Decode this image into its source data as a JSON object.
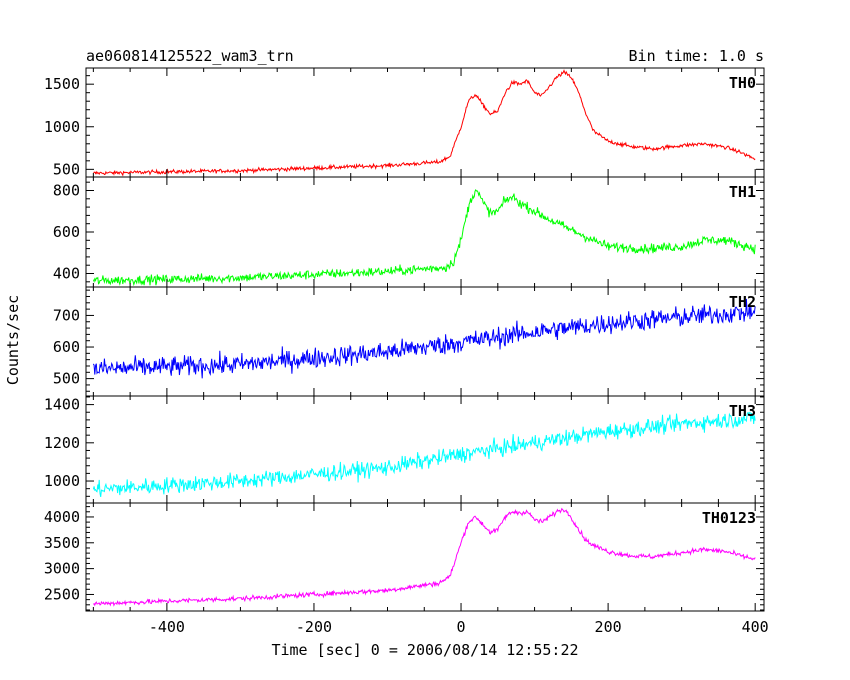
{
  "header": {
    "title": "ae060814125522_wam3_trn",
    "bin_time": "Bin time: 1.0 s"
  },
  "chart_data": {
    "type": "line",
    "xlabel": "Time [sec] 0 = 2006/08/14 12:55:22",
    "ylabel": "Counts/sec",
    "xlim": [
      -510,
      412
    ],
    "xticks": [
      -400,
      -200,
      0,
      200,
      400
    ],
    "x_data_range": [
      -500,
      400
    ],
    "bin_time_s": 1.0,
    "panels": [
      {
        "name": "TH0",
        "color": "#ff0000",
        "noise": 22,
        "ylim": [
          410,
          1690
        ],
        "yticks": [
          500,
          1000,
          1500
        ],
        "profile": [
          [
            -500,
            455
          ],
          [
            -300,
            485
          ],
          [
            -100,
            545
          ],
          [
            -30,
            585
          ],
          [
            -15,
            650
          ],
          [
            0,
            1000
          ],
          [
            10,
            1300
          ],
          [
            20,
            1380
          ],
          [
            30,
            1250
          ],
          [
            40,
            1150
          ],
          [
            50,
            1180
          ],
          [
            60,
            1400
          ],
          [
            70,
            1520
          ],
          [
            80,
            1500
          ],
          [
            90,
            1540
          ],
          [
            100,
            1400
          ],
          [
            110,
            1360
          ],
          [
            120,
            1470
          ],
          [
            130,
            1580
          ],
          [
            140,
            1640
          ],
          [
            150,
            1580
          ],
          [
            160,
            1400
          ],
          [
            170,
            1150
          ],
          [
            180,
            950
          ],
          [
            200,
            830
          ],
          [
            230,
            770
          ],
          [
            260,
            740
          ],
          [
            300,
            780
          ],
          [
            330,
            800
          ],
          [
            360,
            760
          ],
          [
            380,
            700
          ],
          [
            400,
            620
          ]
        ]
      },
      {
        "name": "TH1",
        "color": "#00ff00",
        "noise": 22,
        "ylim": [
          335,
          865
        ],
        "yticks": [
          400,
          600,
          800
        ],
        "profile": [
          [
            -500,
            365
          ],
          [
            -300,
            380
          ],
          [
            -100,
            410
          ],
          [
            -20,
            430
          ],
          [
            -10,
            460
          ],
          [
            0,
            560
          ],
          [
            10,
            720
          ],
          [
            20,
            810
          ],
          [
            30,
            740
          ],
          [
            40,
            690
          ],
          [
            50,
            700
          ],
          [
            60,
            750
          ],
          [
            70,
            770
          ],
          [
            80,
            740
          ],
          [
            90,
            720
          ],
          [
            100,
            700
          ],
          [
            120,
            660
          ],
          [
            150,
            610
          ],
          [
            180,
            560
          ],
          [
            200,
            530
          ],
          [
            250,
            520
          ],
          [
            300,
            530
          ],
          [
            330,
            560
          ],
          [
            360,
            560
          ],
          [
            380,
            540
          ],
          [
            400,
            520
          ]
        ]
      },
      {
        "name": "TH2",
        "color": "#0000ff",
        "noise": 32,
        "ylim": [
          445,
          790
        ],
        "yticks": [
          500,
          600,
          700
        ],
        "profile": [
          [
            -500,
            530
          ],
          [
            -300,
            545
          ],
          [
            -100,
            585
          ],
          [
            0,
            615
          ],
          [
            100,
            648
          ],
          [
            200,
            675
          ],
          [
            300,
            695
          ],
          [
            400,
            712
          ]
        ]
      },
      {
        "name": "TH3",
        "color": "#00ffff",
        "noise": 42,
        "ylim": [
          885,
          1445
        ],
        "yticks": [
          1000,
          1200,
          1400
        ],
        "profile": [
          [
            -500,
            955
          ],
          [
            -300,
            1000
          ],
          [
            -100,
            1070
          ],
          [
            0,
            1140
          ],
          [
            100,
            1200
          ],
          [
            200,
            1260
          ],
          [
            300,
            1300
          ],
          [
            400,
            1330
          ]
        ]
      },
      {
        "name": "TH0123",
        "color": "#ff00ff",
        "noise": 45,
        "ylim": [
          2180,
          4270
        ],
        "yticks": [
          2500,
          3000,
          3500,
          4000
        ],
        "profile": [
          [
            -500,
            2320
          ],
          [
            -300,
            2420
          ],
          [
            -100,
            2580
          ],
          [
            -30,
            2720
          ],
          [
            -15,
            2850
          ],
          [
            0,
            3500
          ],
          [
            10,
            3900
          ],
          [
            20,
            4000
          ],
          [
            30,
            3850
          ],
          [
            40,
            3700
          ],
          [
            50,
            3750
          ],
          [
            60,
            4000
          ],
          [
            70,
            4100
          ],
          [
            80,
            4080
          ],
          [
            90,
            4100
          ],
          [
            100,
            3950
          ],
          [
            110,
            3900
          ],
          [
            120,
            4000
          ],
          [
            130,
            4100
          ],
          [
            140,
            4150
          ],
          [
            150,
            4000
          ],
          [
            160,
            3750
          ],
          [
            170,
            3550
          ],
          [
            180,
            3450
          ],
          [
            200,
            3330
          ],
          [
            230,
            3250
          ],
          [
            260,
            3230
          ],
          [
            300,
            3310
          ],
          [
            330,
            3370
          ],
          [
            360,
            3330
          ],
          [
            380,
            3250
          ],
          [
            400,
            3180
          ]
        ]
      }
    ]
  }
}
